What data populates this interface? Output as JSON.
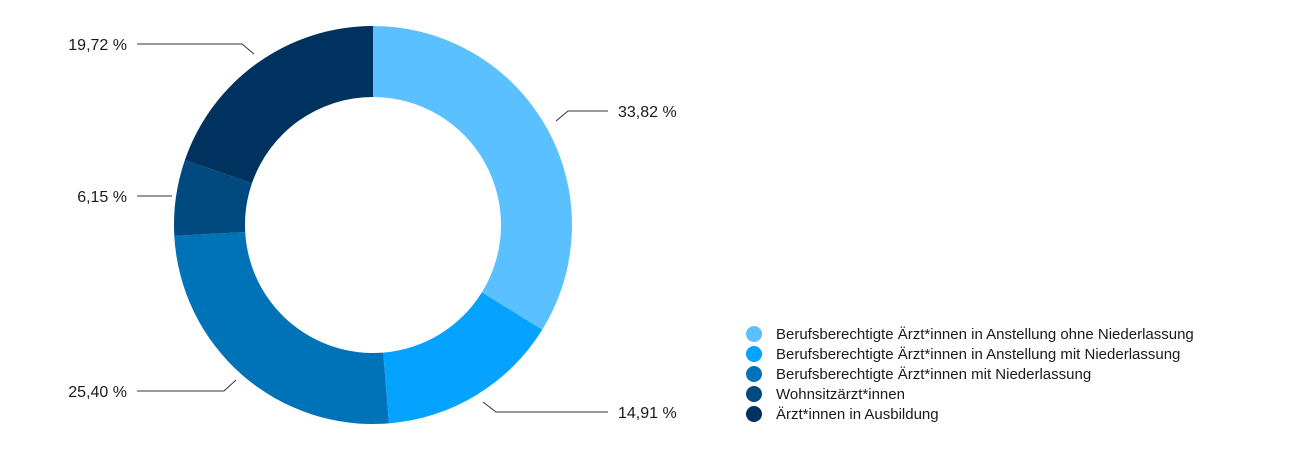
{
  "chart_data": {
    "type": "pie",
    "donut": true,
    "legend_position": "bottom-right",
    "series": [
      {
        "name": "Berufsberechtigte Ärzt*innen in Anstellung ohne Niederlassung",
        "value": 33.82,
        "label": "33,82 %",
        "color": "#5bc0ff"
      },
      {
        "name": "Berufsberechtigte Ärzt*innen in Anstellung mit Niederlassung",
        "value": 14.91,
        "label": "14,91 %",
        "color": "#05a2ff"
      },
      {
        "name": "Berufsberechtigte Ärzt*innen mit Niederlassung",
        "value": 25.4,
        "label": "25,40 %",
        "color": "#0073b8"
      },
      {
        "name": "Wohnsitzärzt*innen",
        "value": 6.15,
        "label": "6,15 %",
        "color": "#004a80"
      },
      {
        "name": "Ärzt*innen in Ausbildung",
        "value": 19.72,
        "label": "19,72 %",
        "color": "#003260"
      }
    ]
  }
}
